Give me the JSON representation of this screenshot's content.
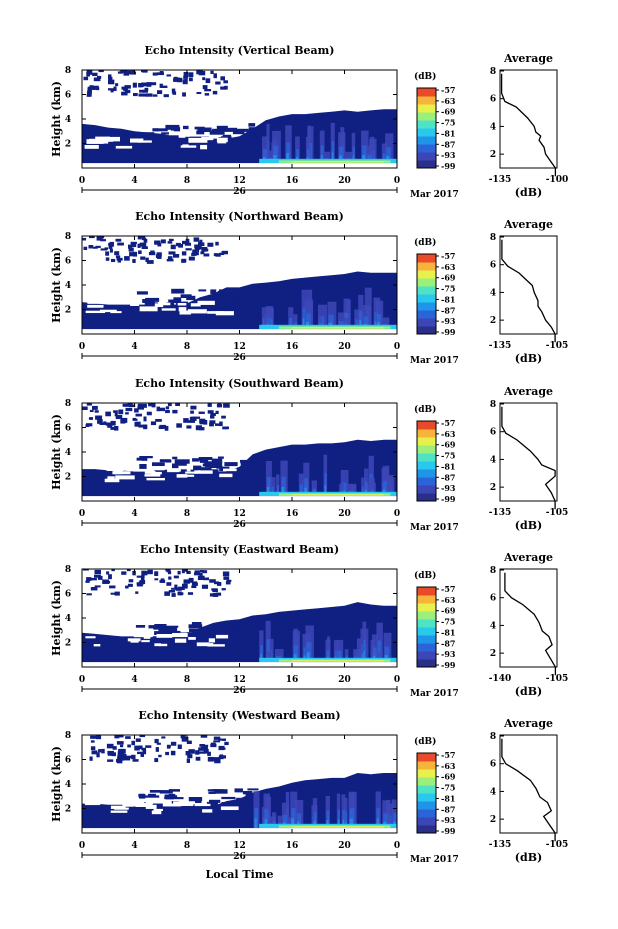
{
  "colors": {
    "background": "#0f1f82",
    "scale": [
      "#2a2f8a",
      "#3d46b7",
      "#2b63d8",
      "#1f95ea",
      "#29c9ee",
      "#4fe3c5",
      "#9af07a",
      "#e8f04c",
      "#f7b43b",
      "#e84a2a"
    ]
  },
  "common": {
    "ylabel": "Height (km)",
    "y_ticks": [
      "2",
      "4",
      "6",
      "8"
    ],
    "x_ticks": [
      "0",
      "4",
      "8",
      "12",
      "16",
      "20",
      "0"
    ],
    "date_day": "26",
    "date_month": "Mar 2017",
    "colorbar_unit": "(dB)",
    "colorbar_ticks": [
      "-57",
      "-63",
      "-69",
      "-75",
      "-81",
      "-87",
      "-93",
      "-99"
    ],
    "avg_title": "Average",
    "avg_unit": "(dB)",
    "avg_y_ticks": [
      "2",
      "4",
      "6",
      "8"
    ],
    "xlabel_bottom": "Local Time"
  },
  "chart_data": [
    {
      "type": "heatmap",
      "title": "Echo Intensity (Vertical Beam)",
      "avg_x_ticks": [
        "-135",
        "-100"
      ],
      "xlim": [
        0,
        24
      ],
      "ylim": [
        0,
        8
      ],
      "clim": [
        -99,
        -57
      ],
      "top_height": [
        [
          0,
          3.6
        ],
        [
          1,
          3.5
        ],
        [
          2,
          3.3
        ],
        [
          3,
          3.2
        ],
        [
          4,
          3.0
        ],
        [
          5,
          2.9
        ],
        [
          6,
          2.8
        ],
        [
          7,
          2.6
        ],
        [
          8,
          2.4
        ],
        [
          9,
          2.4
        ],
        [
          10,
          2.4
        ],
        [
          11,
          2.4
        ],
        [
          12,
          2.6
        ],
        [
          13,
          3.2
        ],
        [
          14,
          3.9
        ],
        [
          15,
          4.2
        ],
        [
          16,
          4.4
        ],
        [
          17,
          4.4
        ],
        [
          18,
          4.5
        ],
        [
          19,
          4.6
        ],
        [
          20,
          4.7
        ],
        [
          21,
          4.6
        ],
        [
          22,
          4.7
        ],
        [
          23,
          4.8
        ],
        [
          24,
          4.8
        ]
      ],
      "avg_profile": [
        [
          0.4,
          -101
        ],
        [
          1,
          -101
        ],
        [
          1.5,
          -104
        ],
        [
          2,
          -107
        ],
        [
          2.5,
          -108
        ],
        [
          3,
          -111
        ],
        [
          3.3,
          -110
        ],
        [
          3.6,
          -113
        ],
        [
          4,
          -114
        ],
        [
          4.6,
          -118
        ],
        [
          5.4,
          -125
        ],
        [
          5.8,
          -132
        ],
        [
          6.4,
          -134
        ],
        [
          7.2,
          -134
        ],
        [
          7.8,
          -134
        ]
      ]
    },
    {
      "type": "heatmap",
      "title": "Echo Intensity (Northward Beam)",
      "avg_x_ticks": [
        "-135",
        "-105"
      ],
      "xlim": [
        0,
        24
      ],
      "ylim": [
        0,
        8
      ],
      "clim": [
        -99,
        -57
      ],
      "top_height": [
        [
          0,
          2.6
        ],
        [
          1,
          2.5
        ],
        [
          2,
          2.4
        ],
        [
          3,
          2.4
        ],
        [
          4,
          2.4
        ],
        [
          5,
          2.4
        ],
        [
          6,
          2.4
        ],
        [
          7,
          2.4
        ],
        [
          8,
          2.5
        ],
        [
          9,
          3.0
        ],
        [
          10,
          3.3
        ],
        [
          11,
          3.8
        ],
        [
          12,
          3.8
        ],
        [
          13,
          4.1
        ],
        [
          14,
          4.2
        ],
        [
          15,
          4.3
        ],
        [
          16,
          4.5
        ],
        [
          17,
          4.6
        ],
        [
          18,
          4.7
        ],
        [
          19,
          4.8
        ],
        [
          20,
          4.9
        ],
        [
          21,
          5.1
        ],
        [
          22,
          5.0
        ],
        [
          23,
          5.0
        ],
        [
          24,
          5.0
        ]
      ],
      "avg_profile": [
        [
          0.4,
          -106
        ],
        [
          1,
          -106
        ],
        [
          1.5,
          -108
        ],
        [
          2,
          -111
        ],
        [
          2.6,
          -113
        ],
        [
          3,
          -115
        ],
        [
          3.4,
          -115
        ],
        [
          4,
          -117
        ],
        [
          4.5,
          -118
        ],
        [
          5.4,
          -125
        ],
        [
          5.9,
          -131
        ],
        [
          6.4,
          -134
        ],
        [
          7.2,
          -134
        ],
        [
          7.8,
          -134
        ]
      ]
    },
    {
      "type": "heatmap",
      "title": "Echo Intensity (Southward Beam)",
      "avg_x_ticks": [
        "-135",
        "-105"
      ],
      "xlim": [
        0,
        24
      ],
      "ylim": [
        0,
        8
      ],
      "clim": [
        -99,
        -57
      ],
      "top_height": [
        [
          0,
          2.6
        ],
        [
          1,
          2.6
        ],
        [
          2,
          2.5
        ],
        [
          3,
          2.5
        ],
        [
          4,
          2.4
        ],
        [
          5,
          2.4
        ],
        [
          6,
          2.4
        ],
        [
          7,
          2.4
        ],
        [
          8,
          2.4
        ],
        [
          9,
          2.4
        ],
        [
          10,
          2.4
        ],
        [
          11,
          2.4
        ],
        [
          12,
          2.8
        ],
        [
          13,
          3.8
        ],
        [
          14,
          4.2
        ],
        [
          15,
          4.4
        ],
        [
          16,
          4.6
        ],
        [
          17,
          4.6
        ],
        [
          18,
          4.7
        ],
        [
          19,
          4.7
        ],
        [
          20,
          4.8
        ],
        [
          21,
          5.0
        ],
        [
          22,
          4.9
        ],
        [
          23,
          5.0
        ],
        [
          24,
          5.0
        ]
      ],
      "avg_profile": [
        [
          0.4,
          -106
        ],
        [
          1,
          -106
        ],
        [
          1.6,
          -108
        ],
        [
          2.2,
          -111
        ],
        [
          2.8,
          -106
        ],
        [
          3.2,
          -106
        ],
        [
          3.6,
          -113
        ],
        [
          4,
          -115
        ],
        [
          4.6,
          -119
        ],
        [
          5.4,
          -126
        ],
        [
          5.9,
          -132
        ],
        [
          6.4,
          -134
        ],
        [
          7.2,
          -134
        ],
        [
          7.8,
          -134
        ]
      ]
    },
    {
      "type": "heatmap",
      "title": "Echo Intensity (Eastward Beam)",
      "avg_x_ticks": [
        "-140",
        "-105"
      ],
      "xlim": [
        0,
        24
      ],
      "ylim": [
        0,
        8
      ],
      "clim": [
        -99,
        -57
      ],
      "top_height": [
        [
          0,
          2.8
        ],
        [
          1,
          2.7
        ],
        [
          2,
          2.6
        ],
        [
          3,
          2.5
        ],
        [
          4,
          2.5
        ],
        [
          5,
          2.5
        ],
        [
          6,
          2.5
        ],
        [
          7,
          2.5
        ],
        [
          8,
          2.6
        ],
        [
          9,
          3.2
        ],
        [
          10,
          3.6
        ],
        [
          11,
          3.8
        ],
        [
          12,
          3.9
        ],
        [
          13,
          4.2
        ],
        [
          14,
          4.3
        ],
        [
          15,
          4.5
        ],
        [
          16,
          4.6
        ],
        [
          17,
          4.7
        ],
        [
          18,
          4.8
        ],
        [
          19,
          4.9
        ],
        [
          20,
          5.0
        ],
        [
          21,
          5.3
        ],
        [
          22,
          5.1
        ],
        [
          23,
          5.0
        ],
        [
          24,
          5.0
        ]
      ],
      "avg_profile": [
        [
          0.4,
          -106
        ],
        [
          1,
          -106
        ],
        [
          1.6,
          -109
        ],
        [
          2.2,
          -112
        ],
        [
          2.6,
          -108
        ],
        [
          3.2,
          -110
        ],
        [
          3.6,
          -114
        ],
        [
          4.2,
          -116
        ],
        [
          4.8,
          -119
        ],
        [
          5.5,
          -126
        ],
        [
          6,
          -133
        ],
        [
          6.5,
          -137
        ],
        [
          7.2,
          -137
        ],
        [
          7.8,
          -137
        ]
      ]
    },
    {
      "type": "heatmap",
      "title": "Echo Intensity (Westward Beam)",
      "avg_x_ticks": [
        "-135",
        "-105"
      ],
      "xlim": [
        0,
        24
      ],
      "ylim": [
        0,
        8
      ],
      "clim": [
        -99,
        -57
      ],
      "top_height": [
        [
          0,
          2.4
        ],
        [
          1,
          2.4
        ],
        [
          2,
          2.3
        ],
        [
          3,
          2.3
        ],
        [
          4,
          2.3
        ],
        [
          5,
          2.2
        ],
        [
          6,
          2.2
        ],
        [
          7,
          2.2
        ],
        [
          8,
          2.2
        ],
        [
          9,
          2.2
        ],
        [
          10,
          2.2
        ],
        [
          11,
          2.6
        ],
        [
          12,
          2.8
        ],
        [
          13,
          3.3
        ],
        [
          14,
          3.6
        ],
        [
          15,
          3.8
        ],
        [
          16,
          4.1
        ],
        [
          17,
          4.3
        ],
        [
          18,
          4.4
        ],
        [
          19,
          4.5
        ],
        [
          20,
          4.5
        ],
        [
          21,
          4.9
        ],
        [
          22,
          4.8
        ],
        [
          23,
          4.9
        ],
        [
          24,
          4.9
        ]
      ],
      "avg_profile": [
        [
          0.4,
          -106
        ],
        [
          1,
          -106
        ],
        [
          1.6,
          -109
        ],
        [
          2.2,
          -112
        ],
        [
          2.6,
          -108
        ],
        [
          3.2,
          -110
        ],
        [
          3.6,
          -114
        ],
        [
          4.2,
          -116
        ],
        [
          4.8,
          -119
        ],
        [
          5.5,
          -126
        ],
        [
          6,
          -132
        ],
        [
          6.5,
          -134
        ],
        [
          7.2,
          -134
        ],
        [
          7.8,
          -134
        ]
      ]
    }
  ]
}
